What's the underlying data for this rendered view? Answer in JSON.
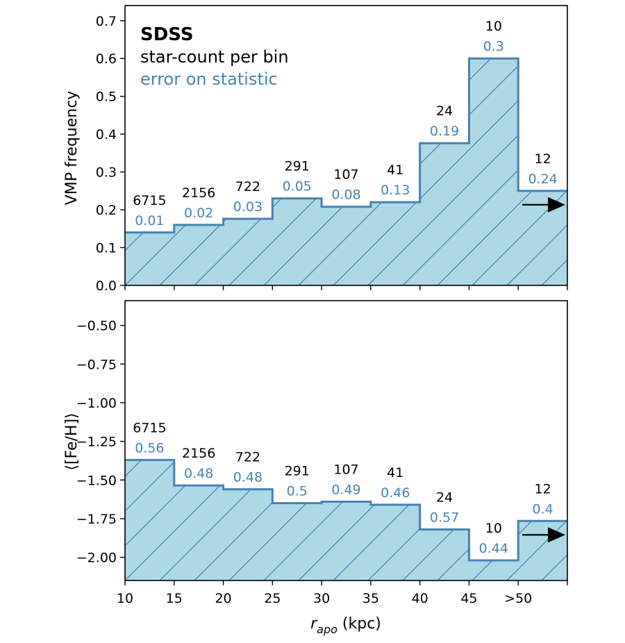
{
  "legend": {
    "title": "SDSS",
    "line1": "star-count per bin",
    "line2": "error on statistic"
  },
  "colors": {
    "fill": "#add8e6",
    "line": "#4682b4",
    "error_text": "#4682b4",
    "hatch": "#4682b4"
  },
  "chart_data": [
    {
      "type": "step-area",
      "ylabel": "VMP frequency",
      "ylim": [
        0,
        0.74
      ],
      "yticks": [
        "0.0",
        "0.1",
        "0.2",
        "0.3",
        "0.4",
        "0.5",
        "0.6",
        "0.7"
      ],
      "ytick_values": [
        0,
        0.1,
        0.2,
        0.3,
        0.4,
        0.5,
        0.6,
        0.7
      ],
      "xlim": [
        10,
        55
      ],
      "bin_edges": [
        10,
        15,
        20,
        25,
        30,
        35,
        40,
        45,
        50,
        55
      ],
      "values": [
        0.14,
        0.16,
        0.176,
        0.23,
        0.208,
        0.22,
        0.376,
        0.6,
        0.25
      ],
      "counts": [
        "6715",
        "2156",
        "722",
        "291",
        "107",
        "41",
        "24",
        "10",
        "12"
      ],
      "errors": [
        "0.01",
        "0.02",
        "0.03",
        "0.05",
        "0.08",
        "0.13",
        "0.19",
        "0.3",
        "0.24"
      ],
      "arrow_in_last_bin": true
    },
    {
      "type": "step-area",
      "ylabel": "⟨[Fe/H]⟩",
      "ylim": [
        -2.15,
        -0.34
      ],
      "yticks": [
        "−0.50",
        "−0.75",
        "−1.00",
        "−1.25",
        "−1.50",
        "−1.75",
        "−2.00"
      ],
      "ytick_values": [
        -0.5,
        -0.75,
        -1.0,
        -1.25,
        -1.5,
        -1.75,
        -2.0
      ],
      "xlim": [
        10,
        55
      ],
      "bin_edges": [
        10,
        15,
        20,
        25,
        30,
        35,
        40,
        45,
        50,
        55
      ],
      "values": [
        -1.37,
        -1.535,
        -1.56,
        -1.65,
        -1.64,
        -1.66,
        -1.82,
        -2.02,
        -1.765
      ],
      "counts": [
        "6715",
        "2156",
        "722",
        "291",
        "107",
        "41",
        "24",
        "10",
        "12"
      ],
      "errors": [
        "0.56",
        "0.48",
        "0.48",
        "0.5",
        "0.49",
        "0.46",
        "0.57",
        "0.44",
        "0.4"
      ],
      "arrow_in_last_bin": true,
      "xlabel": "r_apo (kpc)",
      "xlabel_main": "r",
      "xlabel_sub": "apo",
      "xlabel_rest": " (kpc)",
      "xticks": [
        "10",
        "15",
        "20",
        "25",
        "30",
        "35",
        "40",
        "45",
        ">50"
      ],
      "xtick_values": [
        10,
        15,
        20,
        25,
        30,
        35,
        40,
        45,
        50
      ]
    }
  ]
}
